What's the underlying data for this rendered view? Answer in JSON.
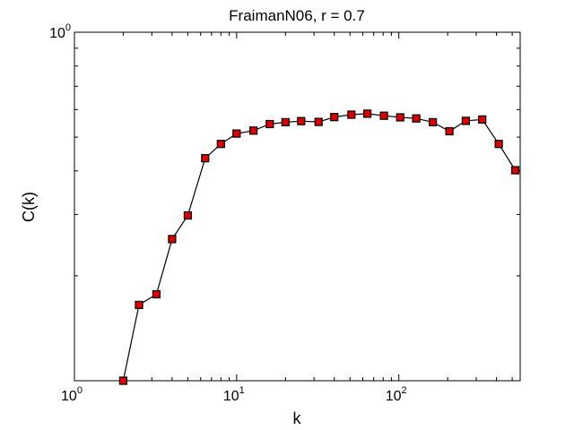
{
  "chart_data": {
    "type": "line",
    "title": "FraimanN06, r = 0.7",
    "xlabel": "k",
    "ylabel": "C(k)",
    "xscale": "log",
    "yscale": "log",
    "xlim": [
      1,
      560
    ],
    "ylim": [
      0.1,
      1
    ],
    "grid": false,
    "x_ticks": [
      {
        "value": 1,
        "base": "10",
        "exp": "0"
      },
      {
        "value": 10,
        "base": "10",
        "exp": "1"
      },
      {
        "value": 100,
        "base": "10",
        "exp": "2"
      }
    ],
    "y_ticks": [
      {
        "value": 1,
        "base": "10",
        "exp": "0"
      }
    ],
    "marker": "square",
    "marker_color": "#dd0000",
    "line_color": "#000000",
    "series": [
      {
        "x": [
          2,
          2.5,
          3.2,
          4,
          5,
          6.4,
          8,
          10,
          12.7,
          16,
          20,
          25,
          32,
          40,
          51,
          64,
          81,
          102,
          128,
          162,
          205,
          259,
          327,
          413,
          522
        ],
        "y": [
          0.1,
          0.165,
          0.177,
          0.255,
          0.298,
          0.435,
          0.478,
          0.512,
          0.522,
          0.545,
          0.552,
          0.556,
          0.553,
          0.571,
          0.58,
          0.584,
          0.576,
          0.57,
          0.566,
          0.552,
          0.52,
          0.557,
          0.562,
          0.478,
          0.402
        ]
      }
    ]
  }
}
